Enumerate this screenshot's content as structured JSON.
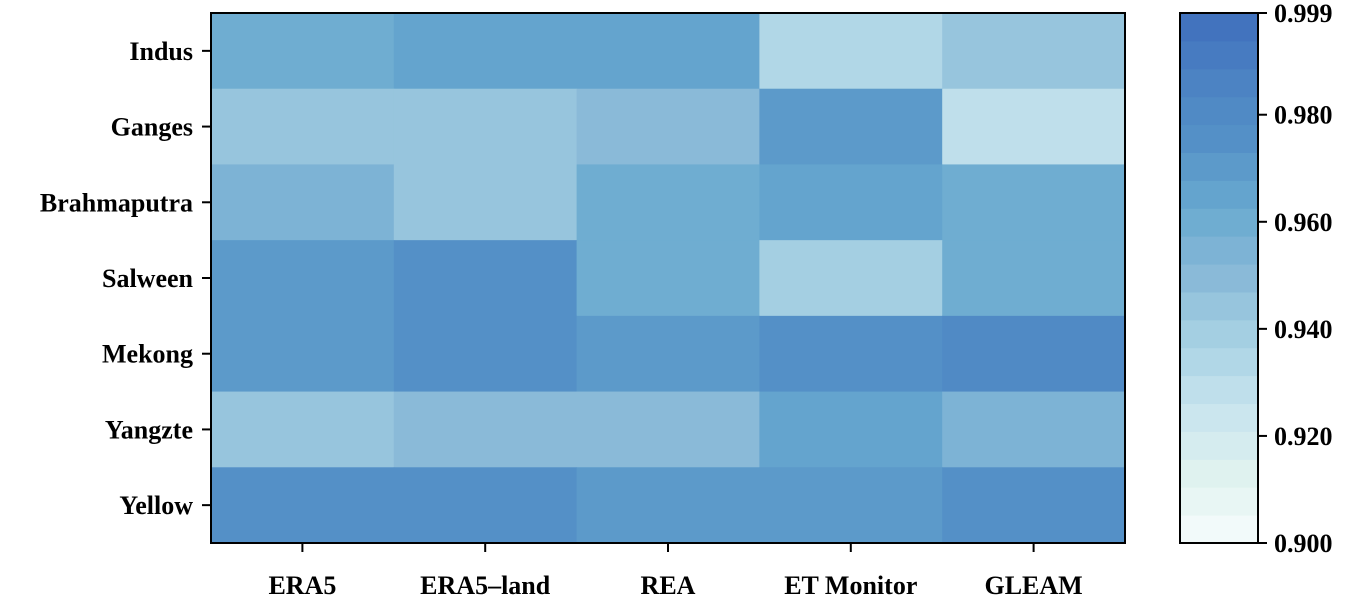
{
  "chart_data": {
    "type": "heatmap",
    "title": "",
    "xlabel": "",
    "ylabel": "",
    "x_categories": [
      "ERA5",
      "ERA5–land",
      "REA",
      "ET Monitor",
      "GLEAM"
    ],
    "y_categories": [
      "Indus",
      "Ganges",
      "Brahmaputra",
      "Salween",
      "Mekong",
      "Yangzte",
      "Yellow"
    ],
    "values": [
      [
        0.961,
        0.965,
        0.965,
        0.933,
        0.946
      ],
      [
        0.945,
        0.945,
        0.952,
        0.97,
        0.931
      ],
      [
        0.955,
        0.945,
        0.962,
        0.966,
        0.962
      ],
      [
        0.971,
        0.976,
        0.962,
        0.938,
        0.962
      ],
      [
        0.971,
        0.976,
        0.97,
        0.976,
        0.98
      ],
      [
        0.943,
        0.947,
        0.951,
        0.966,
        0.957
      ],
      [
        0.976,
        0.976,
        0.97,
        0.971,
        0.976
      ]
    ],
    "colorbar": {
      "min": 0.9,
      "max": 0.999,
      "tick_labels": [
        "0.900",
        "0.920",
        "0.940",
        "0.960",
        "0.980",
        "0.999"
      ],
      "tick_values": [
        0.9,
        0.92,
        0.94,
        0.96,
        0.98,
        0.999
      ],
      "levels": 19,
      "colormap": [
        "#f7fcfd",
        "#e0f3ef",
        "#c9e4ee",
        "#a9d3e4",
        "#8abad8",
        "#6aaad0",
        "#5592c7",
        "#4b82c3",
        "#3f6fbd"
      ]
    }
  }
}
